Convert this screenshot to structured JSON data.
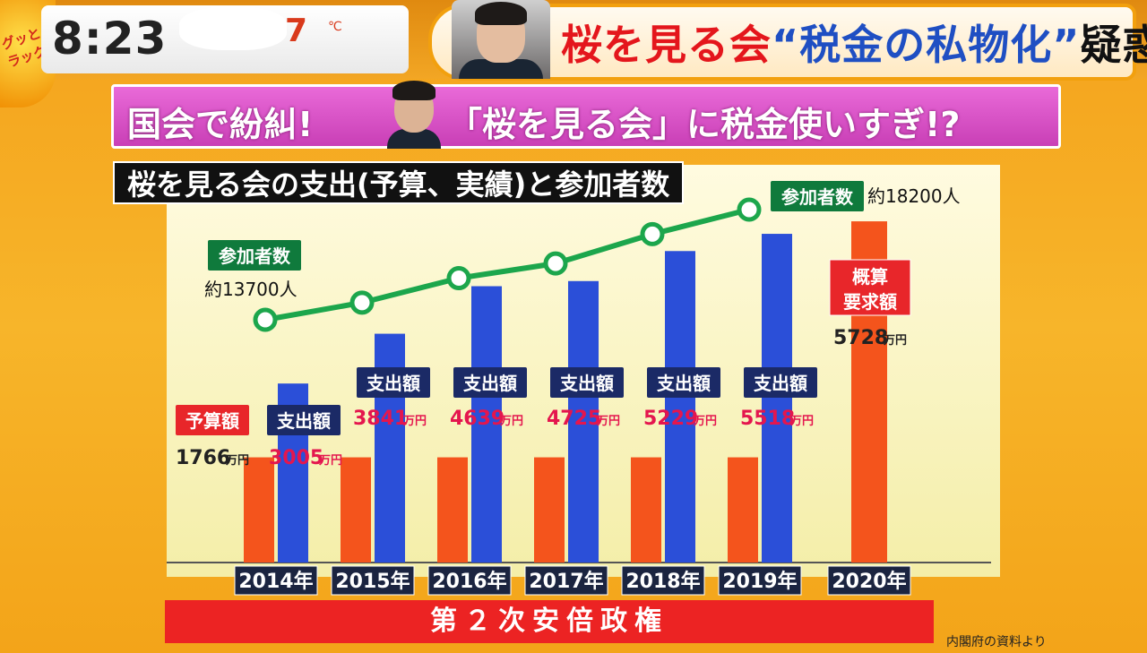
{
  "clock": "8:23",
  "temperature": "7",
  "temperature_unit": "℃",
  "logo_text": "グッとラック!",
  "headline": {
    "part1": "桜を見る会",
    "part2": "“税金の私物化”",
    "part3": "疑惑"
  },
  "sub_banner": {
    "left": "国会で紛糾!",
    "right": "「桜を見る会」に税金使いすぎ!?"
  },
  "chart_title": "桜を見る会の支出(予算、実績)と参加者数",
  "era_label": "第２次安倍政権",
  "source": "内閣府の資料より",
  "colors": {
    "budget_bar": "#f4541c",
    "spend_bar": "#2b4fd8",
    "request_bar": "#f4541c",
    "attendance_line": "#1ca64c",
    "badge_red": "#e8262a",
    "badge_navy": "#1b2a66",
    "badge_green": "#0f7a3c"
  },
  "labels": {
    "budget": "予算額",
    "spend": "支出額",
    "attendance": "参加者数",
    "request_line1": "概算",
    "request_line2": "要求額",
    "unit": "万円"
  },
  "attendance_text": {
    "start": "約13700人",
    "end": "約18200人"
  },
  "chart_data": {
    "type": "bar",
    "title": "桜を見る会の支出(予算、実績)と参加者数",
    "categories": [
      "2014年",
      "2015年",
      "2016年",
      "2017年",
      "2018年",
      "2019年",
      "2020年"
    ],
    "series": [
      {
        "name": "予算額",
        "values": [
          1766,
          1766,
          1766,
          1766,
          1766,
          1766,
          null
        ]
      },
      {
        "name": "支出額",
        "values": [
          3005,
          3841,
          4639,
          4725,
          5229,
          5518,
          null
        ]
      },
      {
        "name": "概算要求額",
        "values": [
          null,
          null,
          null,
          null,
          null,
          null,
          5728
        ]
      },
      {
        "name": "参加者数",
        "type": "line",
        "values": [
          13700,
          14400,
          15400,
          16000,
          17200,
          18200,
          null
        ]
      }
    ],
    "value_labels": {
      "budget": "1766",
      "spend": [
        "3005",
        "3841",
        "4639",
        "4725",
        "5229",
        "5518"
      ],
      "request": "5728"
    },
    "ylabel": "",
    "xlabel": "",
    "grid": false
  }
}
